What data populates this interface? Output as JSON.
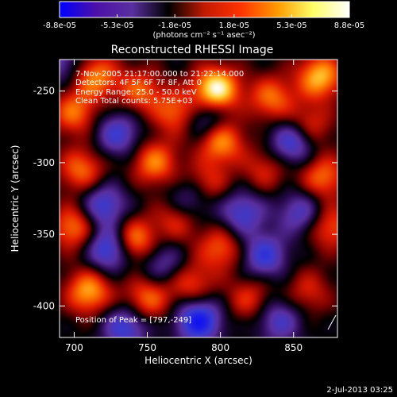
{
  "chart_data": {
    "type": "heatmap",
    "title": "Reconstructed RHESSI Image",
    "xlabel": "Heliocentric X (arcsec)",
    "ylabel": "Heliocentric Y (arcsec)",
    "xlim": [
      690,
      880
    ],
    "ylim": [
      -422,
      -228
    ],
    "x_ticks": [
      700,
      750,
      800,
      850
    ],
    "y_ticks": [
      -250,
      -300,
      -350,
      -400
    ],
    "colorbar": {
      "min": -8.8e-05,
      "max": 8.8e-05,
      "tick_values": [
        -8.8e-05,
        -5.3e-05,
        -1.8e-05,
        1.8e-05,
        5.3e-05,
        8.8e-05
      ],
      "tick_labels": [
        "-8.8e-05",
        "-5.3e-05",
        "-1.8e-05",
        "1.8e-05",
        "5.3e-05",
        "8.8e-05"
      ],
      "units": "(photons cm⁻² s⁻¹ asec⁻²)",
      "colors": [
        "#0000ff",
        "#4b10a8",
        "#5a2fa0",
        "#000000",
        "#c21a00",
        "#ff3300",
        "#ff9900",
        "#ffff66",
        "#ffffff"
      ]
    },
    "annotations": [
      "7-Nov-2005 21:17:00.000 to 21:22:14.000",
      "Detectors: 4F 5F 6F 7F 8F, Att 0",
      "Energy Range: 25.0 - 50.0 keV",
      "Clean    Total counts: 5.75E+03"
    ],
    "peak_label": "Position of Peak = [797,-249]",
    "peak": [
      797,
      -249
    ],
    "sources": [
      {
        "x": 700,
        "y": -265,
        "v": 0.55
      },
      {
        "x": 715,
        "y": -240,
        "v": 0.6
      },
      {
        "x": 745,
        "y": -250,
        "v": 0.5
      },
      {
        "x": 770,
        "y": -265,
        "v": 0.55
      },
      {
        "x": 797,
        "y": -249,
        "v": 1.0
      },
      {
        "x": 800,
        "y": -285,
        "v": 0.7
      },
      {
        "x": 835,
        "y": -255,
        "v": 0.55
      },
      {
        "x": 868,
        "y": -240,
        "v": 0.75
      },
      {
        "x": 860,
        "y": -275,
        "v": 0.5
      },
      {
        "x": 705,
        "y": -305,
        "v": 0.55
      },
      {
        "x": 755,
        "y": -300,
        "v": 0.6
      },
      {
        "x": 790,
        "y": -315,
        "v": 0.45
      },
      {
        "x": 830,
        "y": -305,
        "v": 0.35
      },
      {
        "x": 870,
        "y": -310,
        "v": 0.55
      },
      {
        "x": 700,
        "y": -345,
        "v": 0.6
      },
      {
        "x": 740,
        "y": -355,
        "v": 0.75
      },
      {
        "x": 770,
        "y": -340,
        "v": 0.4
      },
      {
        "x": 800,
        "y": -360,
        "v": 0.5
      },
      {
        "x": 875,
        "y": -345,
        "v": 0.5
      },
      {
        "x": 710,
        "y": -390,
        "v": 0.7
      },
      {
        "x": 750,
        "y": -395,
        "v": 0.55
      },
      {
        "x": 780,
        "y": -385,
        "v": 0.45
      },
      {
        "x": 820,
        "y": -395,
        "v": 0.4
      },
      {
        "x": 860,
        "y": -390,
        "v": 0.35
      },
      {
        "x": 730,
        "y": -280,
        "v": -0.55
      },
      {
        "x": 790,
        "y": -270,
        "v": -0.5
      },
      {
        "x": 850,
        "y": -285,
        "v": -0.7
      },
      {
        "x": 720,
        "y": -330,
        "v": -0.6
      },
      {
        "x": 780,
        "y": -325,
        "v": -0.45
      },
      {
        "x": 815,
        "y": -335,
        "v": -0.55
      },
      {
        "x": 855,
        "y": -335,
        "v": -0.5
      },
      {
        "x": 725,
        "y": -360,
        "v": -0.8
      },
      {
        "x": 830,
        "y": -365,
        "v": -0.6
      },
      {
        "x": 735,
        "y": -415,
        "v": -0.6
      },
      {
        "x": 785,
        "y": -410,
        "v": -0.85
      },
      {
        "x": 840,
        "y": -410,
        "v": -0.5
      },
      {
        "x": 760,
        "y": -370,
        "v": -0.4
      },
      {
        "x": 690,
        "y": -230,
        "v": -0.4
      }
    ]
  },
  "footer": {
    "date": "2-Jul-2013 03:25"
  }
}
